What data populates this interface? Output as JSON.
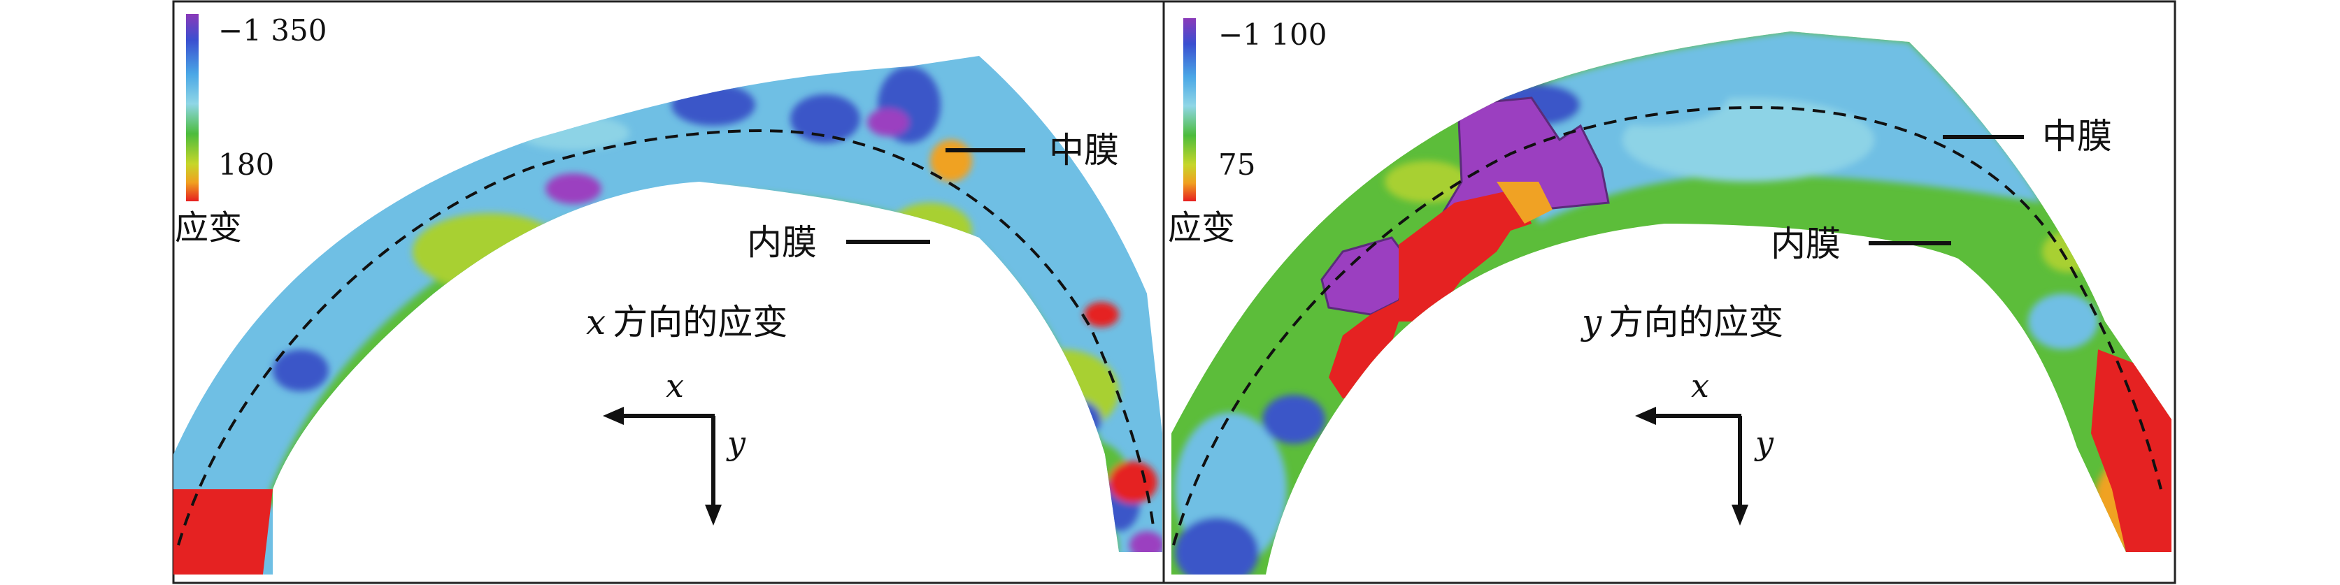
{
  "panels": [
    {
      "id": "x",
      "colorbar": {
        "max_label": "−1 350",
        "min_label": "180",
        "quantity": "应变",
        "colors": [
          "#8a3ab9",
          "#3a4fd0",
          "#4aa7e6",
          "#8fd6e6",
          "#4cbc3c",
          "#c6d62a",
          "#f0a020",
          "#e62020"
        ]
      },
      "layer_labels": {
        "media": "中膜",
        "intima": "内膜"
      },
      "caption_var": "x",
      "caption_text": "方向的应变",
      "axis": {
        "x": "x",
        "y": "y"
      }
    },
    {
      "id": "y",
      "colorbar": {
        "max_label": "−1 100",
        "min_label": "75",
        "quantity": "应变",
        "colors": [
          "#8a3ab9",
          "#3a4fd0",
          "#4aa7e6",
          "#8fd6e6",
          "#4cbc3c",
          "#c6d62a",
          "#f0a020",
          "#e62020"
        ]
      },
      "layer_labels": {
        "media": "中膜",
        "intima": "内膜"
      },
      "caption_var": "y",
      "caption_text": "方向的应变",
      "axis": {
        "x": "x",
        "y": "y"
      }
    }
  ],
  "palette": {
    "purple": "#9b3fc0",
    "blue": "#3b56c8",
    "cyan": "#5fb4e0",
    "lightcyan": "#8dd3e6",
    "green": "#5cbd3a",
    "lime": "#a8d030",
    "orange": "#f0a224",
    "red": "#e52222"
  }
}
